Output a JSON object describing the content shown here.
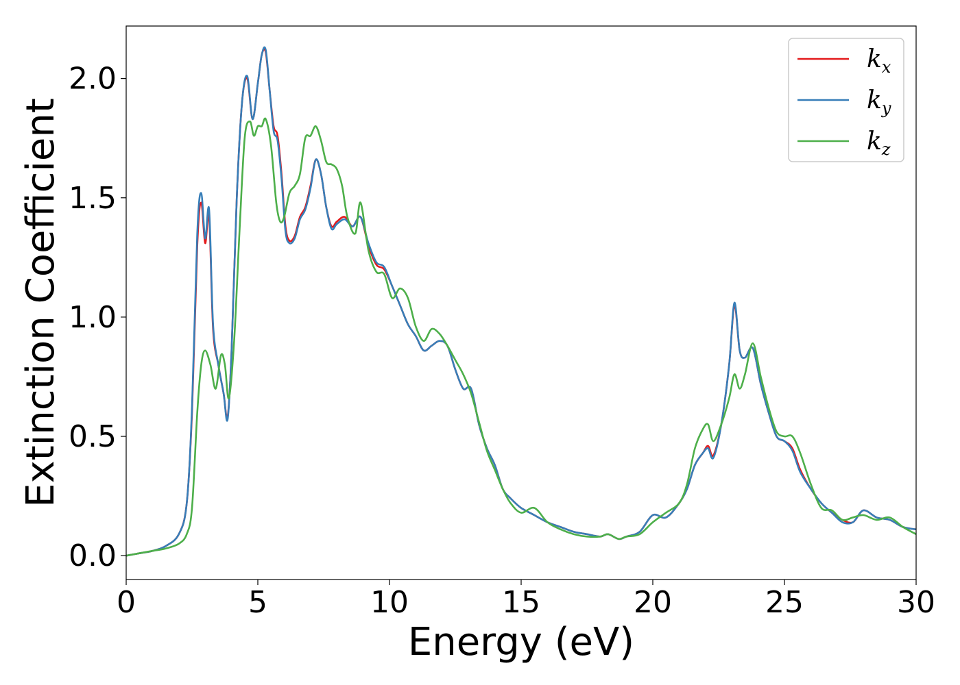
{
  "chart_data": {
    "type": "line",
    "xlabel": "Energy (eV)",
    "ylabel": "Extinction Coefficient",
    "xlim": [
      0,
      30
    ],
    "ylim": [
      -0.1,
      2.22
    ],
    "xticks": [
      0,
      5,
      10,
      15,
      20,
      25,
      30
    ],
    "xtick_labels": [
      "0",
      "5",
      "10",
      "15",
      "20",
      "25",
      "30"
    ],
    "yticks": [
      0.0,
      0.5,
      1.0,
      1.5,
      2.0
    ],
    "ytick_labels": [
      "0.0",
      "0.5",
      "1.0",
      "1.5",
      "2.0"
    ],
    "grid": false,
    "legend_position": "top-right",
    "series": [
      {
        "name": "k",
        "subscript": "x",
        "color": "#e41a1c",
        "x": [
          0,
          0.5,
          1,
          1.5,
          2,
          2.3,
          2.5,
          2.7,
          2.85,
          3.0,
          3.15,
          3.3,
          3.5,
          3.7,
          3.85,
          4.0,
          4.2,
          4.4,
          4.6,
          4.8,
          5.0,
          5.15,
          5.3,
          5.45,
          5.6,
          5.75,
          5.9,
          6.05,
          6.2,
          6.4,
          6.6,
          6.8,
          7.0,
          7.2,
          7.4,
          7.6,
          7.8,
          8.0,
          8.3,
          8.6,
          8.9,
          9.2,
          9.5,
          9.8,
          10.1,
          10.4,
          10.7,
          11.0,
          11.3,
          11.6,
          11.9,
          12.2,
          12.5,
          12.8,
          13.1,
          13.4,
          13.7,
          14.0,
          14.3,
          14.6,
          15.0,
          15.5,
          16.0,
          16.5,
          17.0,
          17.5,
          18.0,
          18.3,
          18.7,
          19.0,
          19.5,
          20.0,
          20.5,
          21.0,
          21.3,
          21.6,
          21.9,
          22.1,
          22.3,
          22.6,
          22.9,
          23.1,
          23.3,
          23.5,
          23.8,
          24.1,
          24.4,
          24.7,
          25.0,
          25.3,
          25.6,
          26.0,
          26.4,
          26.8,
          27.2,
          27.6,
          28.0,
          28.5,
          29.0,
          29.5,
          30.0
        ],
        "values": [
          0.0,
          0.01,
          0.02,
          0.04,
          0.09,
          0.22,
          0.6,
          1.3,
          1.48,
          1.31,
          1.42,
          0.95,
          0.8,
          0.68,
          0.58,
          0.85,
          1.5,
          1.9,
          2.0,
          1.83,
          1.98,
          2.1,
          2.11,
          1.95,
          1.8,
          1.76,
          1.6,
          1.38,
          1.32,
          1.34,
          1.42,
          1.46,
          1.55,
          1.66,
          1.6,
          1.46,
          1.38,
          1.4,
          1.42,
          1.38,
          1.42,
          1.3,
          1.22,
          1.2,
          1.13,
          1.05,
          0.97,
          0.92,
          0.86,
          0.88,
          0.9,
          0.88,
          0.78,
          0.7,
          0.7,
          0.55,
          0.45,
          0.38,
          0.28,
          0.24,
          0.2,
          0.17,
          0.14,
          0.12,
          0.1,
          0.09,
          0.08,
          0.09,
          0.07,
          0.08,
          0.1,
          0.17,
          0.16,
          0.22,
          0.28,
          0.38,
          0.43,
          0.46,
          0.42,
          0.55,
          0.8,
          1.05,
          0.86,
          0.83,
          0.87,
          0.72,
          0.6,
          0.5,
          0.48,
          0.45,
          0.36,
          0.28,
          0.22,
          0.18,
          0.15,
          0.14,
          0.19,
          0.16,
          0.15,
          0.12,
          0.11
        ]
      },
      {
        "name": "k",
        "subscript": "y",
        "color": "#377eb8",
        "x": [
          0,
          0.5,
          1,
          1.5,
          2,
          2.3,
          2.5,
          2.7,
          2.85,
          3.0,
          3.15,
          3.3,
          3.5,
          3.7,
          3.85,
          4.0,
          4.2,
          4.4,
          4.6,
          4.8,
          5.0,
          5.15,
          5.3,
          5.45,
          5.6,
          5.75,
          5.9,
          6.05,
          6.2,
          6.4,
          6.6,
          6.8,
          7.0,
          7.2,
          7.4,
          7.6,
          7.8,
          8.0,
          8.3,
          8.6,
          8.9,
          9.2,
          9.5,
          9.8,
          10.1,
          10.4,
          10.7,
          11.0,
          11.3,
          11.6,
          11.9,
          12.2,
          12.5,
          12.8,
          13.1,
          13.4,
          13.7,
          14.0,
          14.3,
          14.6,
          15.0,
          15.5,
          16.0,
          16.5,
          17.0,
          17.5,
          18.0,
          18.3,
          18.7,
          19.0,
          19.5,
          20.0,
          20.5,
          21.0,
          21.3,
          21.6,
          21.9,
          22.1,
          22.3,
          22.6,
          22.9,
          23.1,
          23.3,
          23.5,
          23.8,
          24.1,
          24.4,
          24.7,
          25.0,
          25.3,
          25.6,
          26.0,
          26.4,
          26.8,
          27.2,
          27.6,
          28.0,
          28.5,
          29.0,
          29.5,
          30.0
        ],
        "values": [
          0.0,
          0.01,
          0.02,
          0.04,
          0.09,
          0.22,
          0.62,
          1.35,
          1.52,
          1.33,
          1.45,
          0.97,
          0.8,
          0.68,
          0.57,
          0.85,
          1.5,
          1.9,
          2.01,
          1.83,
          1.98,
          2.1,
          2.12,
          1.95,
          1.78,
          1.74,
          1.58,
          1.36,
          1.31,
          1.33,
          1.41,
          1.45,
          1.54,
          1.66,
          1.6,
          1.46,
          1.37,
          1.39,
          1.41,
          1.38,
          1.42,
          1.31,
          1.23,
          1.21,
          1.13,
          1.05,
          0.97,
          0.92,
          0.86,
          0.88,
          0.9,
          0.88,
          0.78,
          0.7,
          0.7,
          0.55,
          0.45,
          0.38,
          0.28,
          0.24,
          0.2,
          0.17,
          0.14,
          0.12,
          0.1,
          0.09,
          0.08,
          0.09,
          0.07,
          0.08,
          0.1,
          0.17,
          0.16,
          0.22,
          0.28,
          0.38,
          0.43,
          0.45,
          0.41,
          0.55,
          0.8,
          1.06,
          0.86,
          0.83,
          0.87,
          0.72,
          0.6,
          0.5,
          0.48,
          0.44,
          0.35,
          0.28,
          0.22,
          0.18,
          0.14,
          0.14,
          0.19,
          0.16,
          0.15,
          0.12,
          0.11
        ]
      },
      {
        "name": "k",
        "subscript": "z",
        "color": "#4daf4a",
        "x": [
          0,
          0.5,
          1,
          1.5,
          2,
          2.3,
          2.5,
          2.7,
          2.85,
          3.0,
          3.2,
          3.4,
          3.6,
          3.75,
          3.9,
          4.1,
          4.3,
          4.5,
          4.7,
          4.85,
          5.0,
          5.15,
          5.3,
          5.5,
          5.7,
          5.85,
          6.0,
          6.2,
          6.4,
          6.6,
          6.8,
          7.0,
          7.2,
          7.4,
          7.6,
          7.8,
          8.0,
          8.2,
          8.4,
          8.7,
          8.9,
          9.2,
          9.5,
          9.8,
          10.1,
          10.4,
          10.7,
          11.0,
          11.3,
          11.6,
          11.9,
          12.2,
          12.5,
          12.8,
          13.1,
          13.4,
          13.7,
          14.0,
          14.3,
          14.6,
          15.0,
          15.5,
          16.0,
          16.5,
          17.0,
          17.5,
          18.0,
          18.3,
          18.7,
          19.0,
          19.5,
          20.0,
          20.5,
          21.0,
          21.3,
          21.6,
          21.9,
          22.1,
          22.3,
          22.6,
          22.9,
          23.1,
          23.3,
          23.5,
          23.8,
          24.1,
          24.4,
          24.7,
          25.0,
          25.3,
          25.6,
          26.0,
          26.4,
          26.8,
          27.2,
          27.6,
          28.0,
          28.5,
          29.0,
          29.5,
          30.0
        ],
        "values": [
          0.0,
          0.01,
          0.02,
          0.03,
          0.05,
          0.09,
          0.2,
          0.6,
          0.8,
          0.86,
          0.8,
          0.7,
          0.84,
          0.8,
          0.66,
          0.9,
          1.35,
          1.75,
          1.82,
          1.76,
          1.8,
          1.8,
          1.83,
          1.72,
          1.48,
          1.4,
          1.42,
          1.52,
          1.55,
          1.6,
          1.75,
          1.76,
          1.8,
          1.74,
          1.65,
          1.64,
          1.62,
          1.55,
          1.42,
          1.35,
          1.48,
          1.28,
          1.19,
          1.18,
          1.08,
          1.12,
          1.08,
          0.96,
          0.9,
          0.95,
          0.93,
          0.88,
          0.82,
          0.76,
          0.68,
          0.56,
          0.44,
          0.36,
          0.28,
          0.22,
          0.18,
          0.2,
          0.14,
          0.11,
          0.09,
          0.08,
          0.08,
          0.09,
          0.07,
          0.08,
          0.09,
          0.14,
          0.18,
          0.22,
          0.3,
          0.45,
          0.53,
          0.55,
          0.48,
          0.55,
          0.66,
          0.76,
          0.7,
          0.76,
          0.89,
          0.75,
          0.62,
          0.52,
          0.5,
          0.5,
          0.43,
          0.3,
          0.2,
          0.19,
          0.15,
          0.16,
          0.17,
          0.15,
          0.16,
          0.12,
          0.09
        ]
      }
    ]
  }
}
